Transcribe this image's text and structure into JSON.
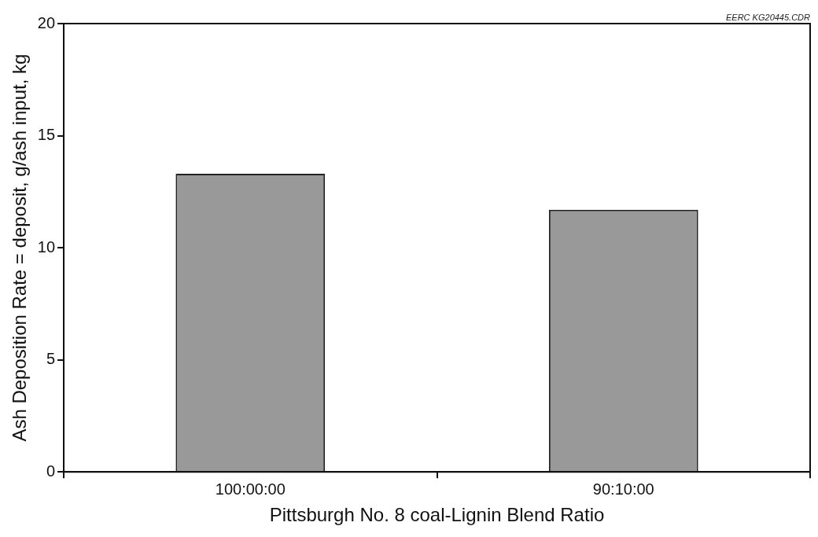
{
  "chart_data": {
    "type": "bar",
    "xlabel": "Pittsburgh No. 8 coal-Lignin Blend Ratio",
    "ylabel": "Ash Deposition Rate = deposit, g/ash input, kg",
    "categories": [
      "100:00:00",
      "90:10:00"
    ],
    "values": [
      13.3,
      11.7
    ],
    "color": "#999999",
    "ylim": [
      0,
      20
    ],
    "yticks": [
      0,
      5,
      10,
      15,
      20
    ],
    "grid": false,
    "legend": false,
    "annotations": [
      "EERC KG20445.CDR"
    ]
  }
}
